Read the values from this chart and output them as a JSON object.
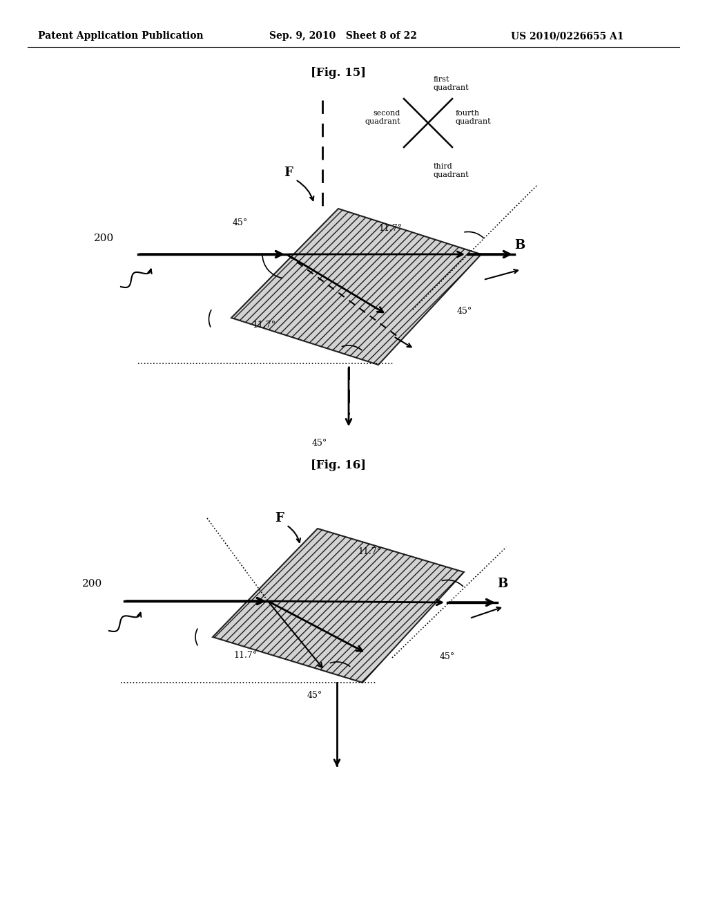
{
  "header_left": "Patent Application Publication",
  "header_mid": "Sep. 9, 2010   Sheet 8 of 22",
  "header_right": "US 2010/0226655 A1",
  "fig15_label": "[Fig. 15]",
  "fig16_label": "[Fig. 16]",
  "bg_color": "#ffffff",
  "plate_fill": "#cccccc",
  "label_200": "200",
  "label_B": "B",
  "label_F": "F",
  "deg45": "45°",
  "deg117": "11.7°",
  "q_first": "first\nquadrant",
  "q_second": "second\nquadrant",
  "q_third": "third\nquadrant",
  "q_fourth": "fourth\nquadrant"
}
